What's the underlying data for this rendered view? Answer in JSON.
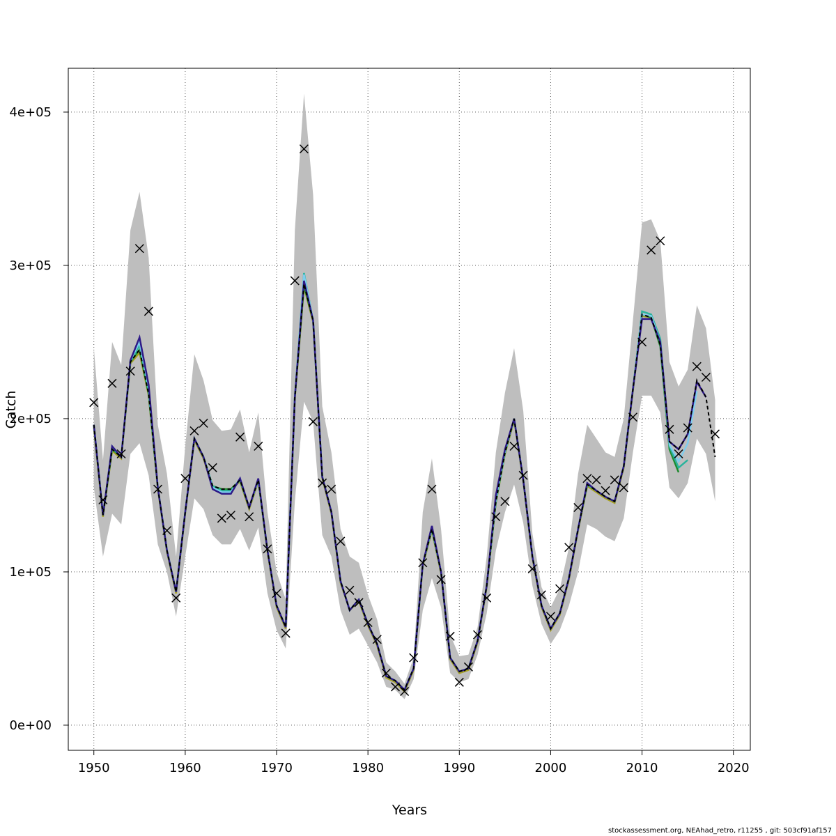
{
  "chart_data": {
    "type": "line",
    "xlabel": "Years",
    "ylabel": "Catch",
    "xlim": [
      1947.2,
      2021.85
    ],
    "ylim": [
      -16400,
      428600
    ],
    "xticks": [
      1950,
      1960,
      1970,
      1980,
      1990,
      2000,
      2010,
      2020
    ],
    "yticks": [
      0,
      100000,
      200000,
      300000,
      400000
    ],
    "ytick_labels": [
      "0e+00",
      "1e+05",
      "2e+05",
      "3e+05",
      "4e+05"
    ],
    "grid": true,
    "start_year": 1950,
    "observed": {
      "marker": "x",
      "values": [
        210500,
        147000,
        223000,
        177000,
        231000,
        311000,
        270000,
        154000,
        127000,
        83000,
        161000,
        192000,
        197000,
        168000,
        135000,
        137000,
        188000,
        136000,
        182000,
        115000,
        86000,
        60000,
        290000,
        376000,
        198000,
        158000,
        154000,
        120000,
        88000,
        80000,
        67000,
        56000,
        34000,
        25000,
        22000,
        44000,
        106000,
        154000,
        95000,
        58000,
        28000,
        38000,
        59000,
        83000,
        136000,
        146000,
        182000,
        163000,
        102000,
        85000,
        71000,
        89000,
        116000,
        142000,
        161000,
        160000,
        153000,
        160000,
        155000,
        201000,
        250000,
        310000,
        316000,
        193000,
        177000,
        194000,
        234000,
        227000,
        190000
      ]
    },
    "band": {
      "color": "#bebebe",
      "upper": [
        246000,
        173000,
        250000,
        235000,
        323000,
        348000,
        305000,
        196000,
        164000,
        110000,
        182000,
        242000,
        225000,
        199000,
        192000,
        193000,
        206000,
        178000,
        204000,
        139000,
        100000,
        82000,
        323000,
        412000,
        346000,
        208000,
        178000,
        128000,
        110000,
        106000,
        85000,
        69000,
        41000,
        35000,
        27000,
        44000,
        139000,
        174000,
        128000,
        59000,
        45000,
        46000,
        64000,
        110000,
        178000,
        217000,
        246000,
        205000,
        125000,
        90000,
        77000,
        89000,
        116000,
        164000,
        196000,
        187000,
        178000,
        175000,
        200000,
        264000,
        328000,
        330000,
        316000,
        237000,
        221000,
        232000,
        274000,
        259000,
        212000
      ],
      "lower": [
        155000,
        110000,
        138000,
        131000,
        177000,
        184000,
        163000,
        118000,
        100000,
        71000,
        110000,
        148000,
        141000,
        124000,
        118000,
        118000,
        128000,
        114000,
        129000,
        86000,
        62000,
        50000,
        146000,
        211000,
        198000,
        124000,
        110000,
        75000,
        59000,
        63000,
        52000,
        41000,
        25000,
        23000,
        17000,
        30000,
        75000,
        96000,
        77000,
        34000,
        28000,
        30000,
        46000,
        73000,
        114000,
        139000,
        157000,
        132000,
        91000,
        66000,
        53000,
        62000,
        78000,
        100000,
        131000,
        128000,
        123000,
        120000,
        135000,
        178000,
        215000,
        215000,
        204000,
        155000,
        148000,
        158000,
        187000,
        177000,
        146000
      ]
    },
    "series": [
      {
        "color": "#000000",
        "dashed": true,
        "values": [
          196000,
          137000,
          180000,
          175000,
          237000,
          245000,
          216000,
          155000,
          114000,
          87000,
          139000,
          187000,
          175000,
          156000,
          154000,
          154000,
          160000,
          142000,
          160000,
          114000,
          78000,
          64000,
          214000,
          288000,
          264000,
          162000,
          139000,
          94000,
          75000,
          82000,
          66000,
          53000,
          32000,
          29000,
          23000,
          37000,
          105000,
          128000,
          100000,
          44000,
          35000,
          37000,
          55000,
          91000,
          146000,
          178000,
          200000,
          160000,
          110000,
          78000,
          63000,
          73000,
          96000,
          128000,
          157000,
          153000,
          149000,
          146000,
          169000,
          219000,
          268000,
          266000,
          248000,
          185000,
          180000,
          190000,
          225000,
          214000,
          175000
        ]
      },
      {
        "color": "#2e1a87",
        "values": [
          196000,
          137000,
          182000,
          175000,
          238000,
          253000,
          222000,
          155000,
          114000,
          87000,
          139000,
          187000,
          175000,
          154000,
          151000,
          151000,
          161000,
          142000,
          161000,
          114000,
          78000,
          64000,
          214000,
          290000,
          264000,
          162000,
          139000,
          94000,
          75000,
          82000,
          66000,
          53000,
          32000,
          29000,
          23000,
          37000,
          105000,
          130000,
          100000,
          44000,
          35000,
          37000,
          55000,
          91000,
          150000,
          180000,
          200000,
          160000,
          110000,
          78000,
          63000,
          73000,
          96000,
          128000,
          158000,
          153000,
          149000,
          146000,
          169000,
          219000,
          265000,
          265000,
          250000,
          185000,
          180000,
          190000,
          224000,
          214000
        ]
      },
      {
        "color": "#7fcdee",
        "values": [
          196000,
          137000,
          182000,
          175000,
          238000,
          250000,
          220000,
          155000,
          114000,
          87000,
          139000,
          187000,
          175000,
          155000,
          152000,
          152000,
          161000,
          142000,
          160000,
          114000,
          78000,
          64000,
          214000,
          294000,
          264000,
          162000,
          139000,
          94000,
          75000,
          82000,
          66000,
          53000,
          32000,
          29000,
          23000,
          37000,
          105000,
          129000,
          100000,
          44000,
          35000,
          37000,
          55000,
          91000,
          148000,
          179000,
          200000,
          160000,
          110000,
          78000,
          63000,
          73000,
          96000,
          128000,
          158000,
          153000,
          149000,
          146000,
          169000,
          219000,
          268000,
          267000,
          250000,
          183000,
          172000,
          184000,
          218000
        ]
      },
      {
        "color": "#2ab39c",
        "values": [
          196000,
          137000,
          181000,
          175000,
          237000,
          248000,
          218000,
          155000,
          114000,
          87000,
          139000,
          187000,
          175000,
          156000,
          153000,
          153000,
          160000,
          142000,
          160000,
          114000,
          78000,
          64000,
          214000,
          295000,
          264000,
          162000,
          139000,
          94000,
          75000,
          82000,
          66000,
          53000,
          32000,
          29000,
          23000,
          37000,
          105000,
          128000,
          100000,
          44000,
          35000,
          37000,
          55000,
          91000,
          146000,
          178000,
          200000,
          160000,
          110000,
          78000,
          63000,
          73000,
          96000,
          128000,
          157000,
          153000,
          149000,
          146000,
          169000,
          219000,
          270000,
          268000,
          252000,
          182000,
          168000,
          173000
        ]
      },
      {
        "color": "#1f8a2e",
        "values": [
          196000,
          137000,
          180000,
          175000,
          237000,
          245000,
          216000,
          155000,
          114000,
          87000,
          139000,
          187000,
          175000,
          156000,
          154000,
          154000,
          160000,
          142000,
          160000,
          114000,
          78000,
          64000,
          214000,
          287000,
          264000,
          162000,
          139000,
          94000,
          75000,
          82000,
          66000,
          53000,
          32000,
          29000,
          23000,
          37000,
          105000,
          128000,
          100000,
          44000,
          35000,
          37000,
          55000,
          91000,
          146000,
          178000,
          200000,
          160000,
          110000,
          78000,
          63000,
          73000,
          96000,
          128000,
          157000,
          153000,
          149000,
          146000,
          169000,
          219000,
          268000,
          266000,
          247000,
          180000,
          165000
        ]
      },
      {
        "color": "#a8a020",
        "values": [
          194000,
          136000,
          179000,
          174000,
          236000,
          243000,
          215000,
          154000,
          113000,
          86000,
          138000,
          186000,
          174000,
          155000,
          154000,
          154000,
          159000,
          141000,
          159000,
          113000,
          77000,
          63000,
          213000,
          286000,
          263000,
          161000,
          138000,
          93000,
          75000,
          81000,
          65000,
          52000,
          31000,
          28000,
          22000,
          36000,
          104000,
          127000,
          99000,
          43000,
          34000,
          36000,
          54000,
          90000,
          145000,
          177000,
          199000,
          159000,
          109000,
          77000,
          62000,
          72000,
          95000,
          127000,
          156000,
          152000,
          148000,
          145000,
          168000,
          218000,
          267000,
          266000,
          249000,
          186000
        ]
      }
    ]
  },
  "footer": "stockassessment.org, NEAhad_retro, r11255 , git: 503cf91af157"
}
